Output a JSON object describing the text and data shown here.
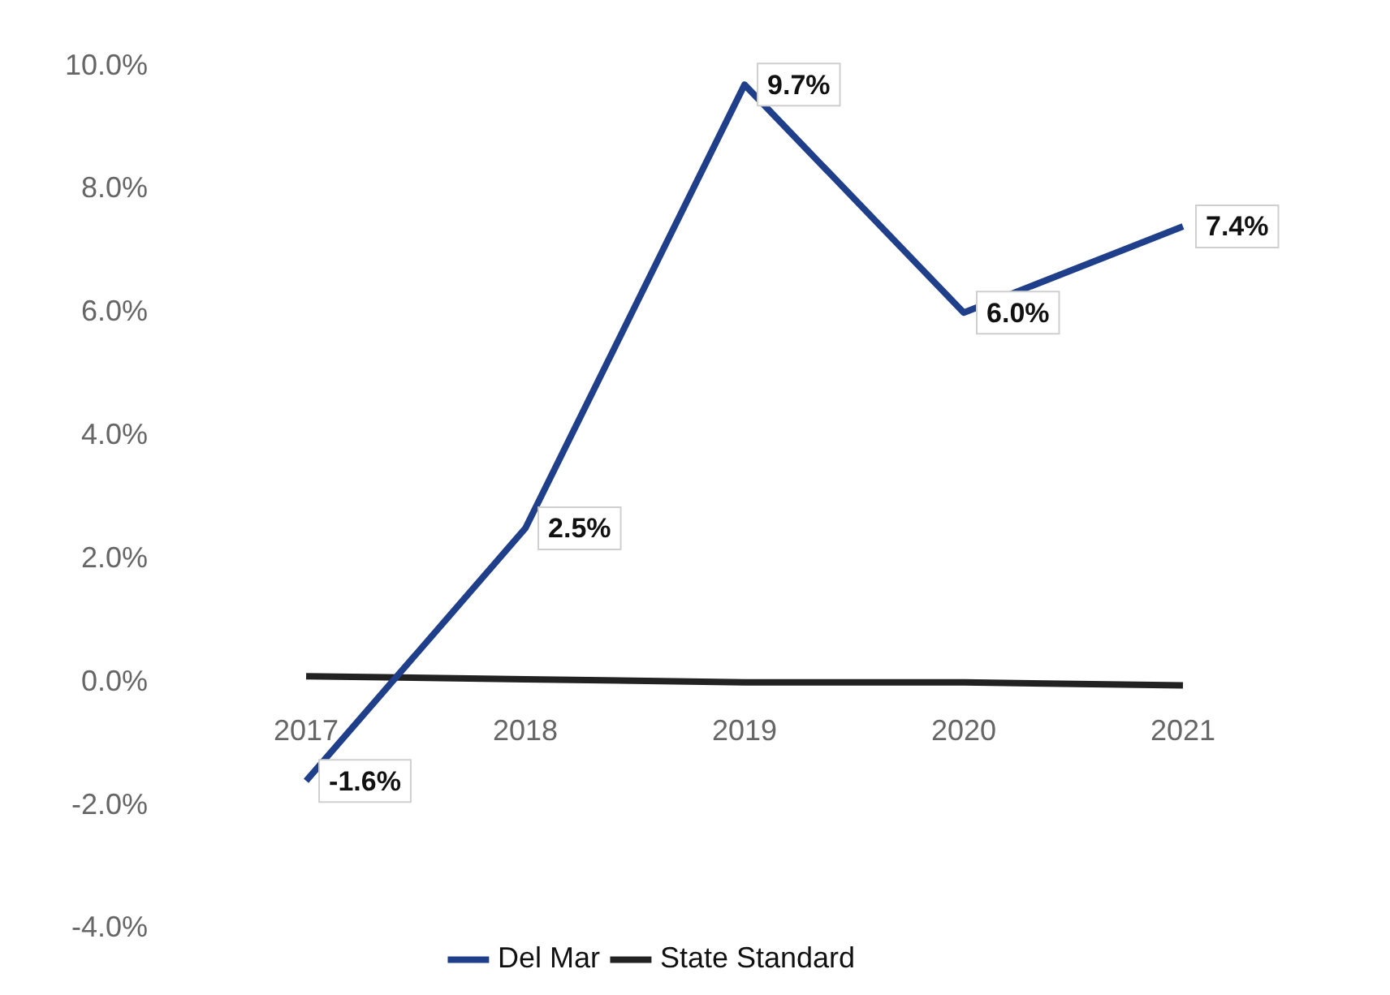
{
  "chart_data": {
    "type": "line",
    "categories": [
      "2017",
      "2018",
      "2019",
      "2020",
      "2021"
    ],
    "series": [
      {
        "name": "Del Mar",
        "color": "#1f3f8a",
        "values": [
          -1.6,
          2.5,
          9.7,
          6.0,
          7.4
        ],
        "value_labels": [
          "-1.6%",
          "2.5%",
          "9.7%",
          "6.0%",
          "7.4%"
        ]
      },
      {
        "name": "State Standard",
        "color": "#222222",
        "values": [
          0.1,
          0.05,
          0.0,
          0.0,
          -0.05
        ]
      }
    ],
    "ylim": [
      -4,
      10
    ],
    "yticks": [
      {
        "value": -4,
        "label": "-4.0%"
      },
      {
        "value": -2,
        "label": "-2.0%"
      },
      {
        "value": 0,
        "label": "0.0%"
      },
      {
        "value": 2,
        "label": "2.0%"
      },
      {
        "value": 4,
        "label": "4.0%"
      },
      {
        "value": 6,
        "label": "6.0%"
      },
      {
        "value": 8,
        "label": "8.0%"
      },
      {
        "value": 10,
        "label": "10.0%"
      }
    ],
    "grid": false,
    "legend": "bottom",
    "marker": "none",
    "line_style": "solid"
  }
}
